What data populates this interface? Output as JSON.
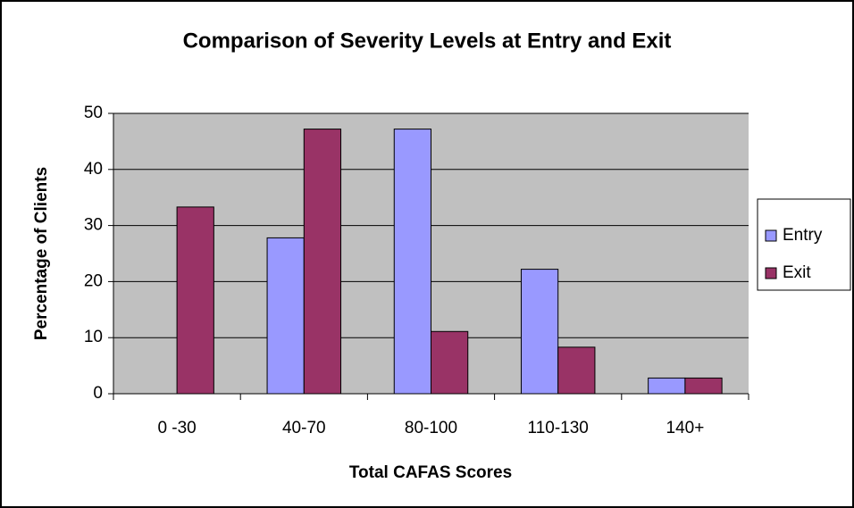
{
  "chart_data": {
    "type": "bar",
    "title": "Comparison of Severity Levels at Entry and Exit",
    "xlabel": "Total CAFAS Scores",
    "ylabel": "Percentage of Clients",
    "categories": [
      "0 -30",
      "40-70",
      "80-100",
      "110-130",
      "140+"
    ],
    "series": [
      {
        "name": "Entry",
        "color": "#9999ff",
        "values": [
          0,
          27.8,
          47.2,
          22.2,
          2.8
        ]
      },
      {
        "name": "Exit",
        "color": "#993366",
        "values": [
          33.3,
          47.2,
          11.1,
          8.3,
          2.8
        ]
      }
    ],
    "ylim": [
      0,
      50
    ],
    "yticks": [
      0,
      10,
      20,
      30,
      40,
      50
    ],
    "grid": true,
    "legend": "right"
  }
}
